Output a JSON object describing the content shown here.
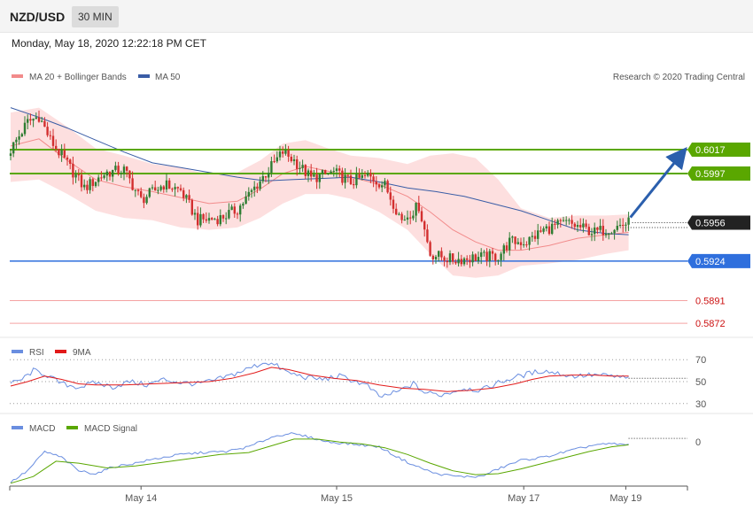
{
  "header": {
    "symbol": "NZD/USD",
    "timeframe_button": "30 MIN",
    "datetime": "Monday, May 18, 2020 12:22:18 PM CET"
  },
  "legend": {
    "ma20": "MA 20 + Bollinger Bands",
    "ma50": "MA 50",
    "credit": "Research © 2020 Trading Central",
    "rsi": "RSI",
    "rsi_ma": "9MA",
    "macd": "MACD",
    "macd_signal": "MACD Signal"
  },
  "colors": {
    "up_candle": "#2e7d32",
    "down_candle": "#d32f2f",
    "bollinger_fill": "#fcd4d4",
    "ma20": "#f28b8b",
    "ma50": "#3a5da6",
    "resistance": "#5aa700",
    "support": "#2f6fdd",
    "extra_support": "#f5a3a3",
    "current_price": "#222222",
    "rsi": "#6a8ee0",
    "rsi_ma": "#e21a1a",
    "macd": "#6a8ee0",
    "macd_signal": "#5aa700",
    "arrow": "#2b5fad"
  },
  "chart_data": [
    {
      "type": "candlestick",
      "title": "NZD/USD",
      "ylim": [
        0.5864,
        0.6068
      ],
      "levels": [
        {
          "value": 0.6017,
          "label": "0.6017",
          "kind": "resistance"
        },
        {
          "value": 0.5997,
          "label": "0.5997",
          "kind": "resistance"
        },
        {
          "value": 0.5956,
          "label": "0.5956",
          "kind": "current"
        },
        {
          "value": 0.5924,
          "label": "0.5924",
          "kind": "support"
        },
        {
          "value": 0.5891,
          "label": "0.5891",
          "kind": "extra_support"
        },
        {
          "value": 0.5872,
          "label": "0.5872",
          "kind": "extra_support"
        }
      ],
      "x_ticks": [
        "May 14",
        "May 15",
        "May 17",
        "May 19"
      ],
      "anchors_close": [
        [
          0,
          0.6017
        ],
        [
          6,
          0.604
        ],
        [
          10,
          0.6045
        ],
        [
          14,
          0.6025
        ],
        [
          20,
          0.6005
        ],
        [
          26,
          0.5985
        ],
        [
          34,
          0.5998
        ],
        [
          40,
          0.6
        ],
        [
          46,
          0.5975
        ],
        [
          54,
          0.5988
        ],
        [
          60,
          0.5983
        ],
        [
          66,
          0.5958
        ],
        [
          74,
          0.596
        ],
        [
          80,
          0.5967
        ],
        [
          86,
          0.5985
        ],
        [
          92,
          0.6003
        ],
        [
          96,
          0.6015
        ],
        [
          100,
          0.6008
        ],
        [
          106,
          0.5993
        ],
        [
          114,
          0.5998
        ],
        [
          120,
          0.599
        ],
        [
          126,
          0.5995
        ],
        [
          132,
          0.5987
        ],
        [
          138,
          0.5958
        ],
        [
          144,
          0.597
        ],
        [
          148,
          0.593
        ],
        [
          156,
          0.5925
        ],
        [
          164,
          0.5927
        ],
        [
          172,
          0.5928
        ],
        [
          176,
          0.594
        ],
        [
          182,
          0.594
        ],
        [
          188,
          0.595
        ],
        [
          196,
          0.5956
        ],
        [
          206,
          0.5948
        ],
        [
          214,
          0.5953
        ],
        [
          218,
          0.5956
        ]
      ],
      "bollinger_upper": [
        [
          0,
          0.6048
        ],
        [
          10,
          0.6052
        ],
        [
          20,
          0.6036
        ],
        [
          30,
          0.6018
        ],
        [
          40,
          0.6012
        ],
        [
          50,
          0.6005
        ],
        [
          60,
          0.6002
        ],
        [
          70,
          0.5996
        ],
        [
          80,
          0.5998
        ],
        [
          88,
          0.6008
        ],
        [
          96,
          0.6022
        ],
        [
          104,
          0.6025
        ],
        [
          112,
          0.6018
        ],
        [
          120,
          0.6012
        ],
        [
          130,
          0.601
        ],
        [
          140,
          0.6005
        ],
        [
          148,
          0.6012
        ],
        [
          156,
          0.6014
        ],
        [
          164,
          0.601
        ],
        [
          172,
          0.5992
        ],
        [
          180,
          0.5968
        ],
        [
          190,
          0.596
        ],
        [
          200,
          0.5962
        ],
        [
          210,
          0.5962
        ],
        [
          218,
          0.5963
        ]
      ],
      "bollinger_lower": [
        [
          0,
          0.599
        ],
        [
          10,
          0.5992
        ],
        [
          20,
          0.598
        ],
        [
          30,
          0.5966
        ],
        [
          40,
          0.596
        ],
        [
          50,
          0.5958
        ],
        [
          60,
          0.5952
        ],
        [
          70,
          0.595
        ],
        [
          80,
          0.5952
        ],
        [
          88,
          0.596
        ],
        [
          96,
          0.5972
        ],
        [
          104,
          0.598
        ],
        [
          112,
          0.598
        ],
        [
          120,
          0.5976
        ],
        [
          130,
          0.5965
        ],
        [
          140,
          0.595
        ],
        [
          148,
          0.593
        ],
        [
          156,
          0.5912
        ],
        [
          164,
          0.591
        ],
        [
          172,
          0.5912
        ],
        [
          180,
          0.592
        ],
        [
          190,
          0.5922
        ],
        [
          200,
          0.5925
        ],
        [
          210,
          0.593
        ],
        [
          218,
          0.5933
        ]
      ],
      "ma20": [
        [
          0,
          0.602
        ],
        [
          10,
          0.6026
        ],
        [
          20,
          0.6008
        ],
        [
          30,
          0.5992
        ],
        [
          40,
          0.5986
        ],
        [
          50,
          0.5982
        ],
        [
          60,
          0.5977
        ],
        [
          70,
          0.5972
        ],
        [
          80,
          0.5974
        ],
        [
          88,
          0.5984
        ],
        [
          96,
          0.5997
        ],
        [
          104,
          0.6003
        ],
        [
          112,
          0.5999
        ],
        [
          120,
          0.5994
        ],
        [
          130,
          0.5988
        ],
        [
          140,
          0.5978
        ],
        [
          148,
          0.5965
        ],
        [
          156,
          0.595
        ],
        [
          164,
          0.594
        ],
        [
          172,
          0.5933
        ],
        [
          180,
          0.5933
        ],
        [
          190,
          0.5937
        ],
        [
          200,
          0.5943
        ],
        [
          210,
          0.5946
        ],
        [
          218,
          0.5948
        ]
      ],
      "ma50": [
        [
          0,
          0.6052
        ],
        [
          10,
          0.6044
        ],
        [
          20,
          0.6035
        ],
        [
          30,
          0.6025
        ],
        [
          40,
          0.6015
        ],
        [
          50,
          0.6006
        ],
        [
          60,
          0.6002
        ],
        [
          70,
          0.5998
        ],
        [
          80,
          0.5994
        ],
        [
          90,
          0.5991
        ],
        [
          100,
          0.5992
        ],
        [
          110,
          0.5993
        ],
        [
          120,
          0.5994
        ],
        [
          130,
          0.599
        ],
        [
          140,
          0.5985
        ],
        [
          150,
          0.5982
        ],
        [
          160,
          0.5978
        ],
        [
          170,
          0.5972
        ],
        [
          180,
          0.5966
        ],
        [
          190,
          0.5958
        ],
        [
          200,
          0.595
        ],
        [
          210,
          0.5947
        ],
        [
          218,
          0.5946
        ]
      ]
    },
    {
      "type": "line",
      "title": "RSI",
      "ylim": [
        25,
        75
      ],
      "y_ticks": [
        70,
        50,
        30
      ],
      "series": [
        {
          "name": "RSI",
          "values": [
            [
              0,
              48
            ],
            [
              4,
              52
            ],
            [
              8,
              60
            ],
            [
              12,
              57
            ],
            [
              18,
              48
            ],
            [
              24,
              45
            ],
            [
              30,
              49
            ],
            [
              36,
              45
            ],
            [
              42,
              50
            ],
            [
              48,
              47
            ],
            [
              54,
              52
            ],
            [
              60,
              49
            ],
            [
              66,
              48
            ],
            [
              72,
              51
            ],
            [
              78,
              56
            ],
            [
              84,
              62
            ],
            [
              90,
              68
            ],
            [
              94,
              64
            ],
            [
              98,
              58
            ],
            [
              104,
              54
            ],
            [
              110,
              52
            ],
            [
              116,
              55
            ],
            [
              122,
              50
            ],
            [
              126,
              46
            ],
            [
              130,
              36
            ],
            [
              136,
              40
            ],
            [
              142,
              48
            ],
            [
              146,
              40
            ],
            [
              152,
              38
            ],
            [
              160,
              44
            ],
            [
              166,
              42
            ],
            [
              172,
              49
            ],
            [
              178,
              54
            ],
            [
              184,
              58
            ],
            [
              188,
              60
            ],
            [
              192,
              58
            ],
            [
              198,
              55
            ],
            [
              206,
              56
            ],
            [
              212,
              55
            ],
            [
              218,
              53
            ]
          ]
        },
        {
          "name": "9MA",
          "values": [
            [
              0,
              46
            ],
            [
              6,
              50
            ],
            [
              12,
              55
            ],
            [
              18,
              52
            ],
            [
              24,
              48
            ],
            [
              30,
              47
            ],
            [
              40,
              47
            ],
            [
              50,
              48
            ],
            [
              60,
              49
            ],
            [
              70,
              50
            ],
            [
              78,
              53
            ],
            [
              86,
              58
            ],
            [
              92,
              63
            ],
            [
              98,
              61
            ],
            [
              106,
              56
            ],
            [
              114,
              53
            ],
            [
              122,
              51
            ],
            [
              130,
              47
            ],
            [
              138,
              44
            ],
            [
              146,
              43
            ],
            [
              154,
              41
            ],
            [
              162,
              42
            ],
            [
              170,
              44
            ],
            [
              178,
              48
            ],
            [
              184,
              52
            ],
            [
              190,
              55
            ],
            [
              198,
              56
            ],
            [
              206,
              56
            ],
            [
              212,
              55
            ],
            [
              218,
              55
            ]
          ]
        }
      ]
    },
    {
      "type": "line",
      "title": "MACD",
      "ylim": [
        -0.0045,
        0.0014
      ],
      "y_ticks": [
        0
      ],
      "x_ticks": [
        "May 14",
        "May 15",
        "May 17",
        "May 19"
      ],
      "series": [
        {
          "name": "MACD",
          "values": [
            [
              0,
              -0.0042
            ],
            [
              6,
              -0.003
            ],
            [
              12,
              -0.001
            ],
            [
              18,
              -0.0016
            ],
            [
              24,
              -0.003
            ],
            [
              30,
              -0.0033
            ],
            [
              36,
              -0.0026
            ],
            [
              44,
              -0.0022
            ],
            [
              52,
              -0.0017
            ],
            [
              60,
              -0.0013
            ],
            [
              68,
              -0.0011
            ],
            [
              76,
              -0.001
            ],
            [
              84,
              -0.0005
            ],
            [
              92,
              0.0005
            ],
            [
              98,
              0.0009
            ],
            [
              104,
              0.0006
            ],
            [
              112,
              0.0
            ],
            [
              120,
              -0.0002
            ],
            [
              130,
              -0.0005
            ],
            [
              136,
              -0.0015
            ],
            [
              142,
              -0.0024
            ],
            [
              150,
              -0.0033
            ],
            [
              158,
              -0.0036
            ],
            [
              166,
              -0.0036
            ],
            [
              172,
              -0.0028
            ],
            [
              180,
              -0.0019
            ],
            [
              188,
              -0.0016
            ],
            [
              196,
              -0.001
            ],
            [
              206,
              -0.0003
            ],
            [
              212,
              -0.0002
            ],
            [
              218,
              -0.0003
            ]
          ]
        },
        {
          "name": "MACD Signal",
          "values": [
            [
              0,
              -0.0043
            ],
            [
              8,
              -0.0036
            ],
            [
              16,
              -0.002
            ],
            [
              24,
              -0.0022
            ],
            [
              34,
              -0.0027
            ],
            [
              44,
              -0.0025
            ],
            [
              54,
              -0.0021
            ],
            [
              64,
              -0.0017
            ],
            [
              74,
              -0.0013
            ],
            [
              84,
              -0.0011
            ],
            [
              92,
              -0.0004
            ],
            [
              100,
              0.0003
            ],
            [
              108,
              0.0003
            ],
            [
              116,
              0.0
            ],
            [
              124,
              -0.0002
            ],
            [
              132,
              -0.0006
            ],
            [
              140,
              -0.0013
            ],
            [
              148,
              -0.0022
            ],
            [
              156,
              -0.003
            ],
            [
              164,
              -0.0034
            ],
            [
              172,
              -0.0033
            ],
            [
              180,
              -0.0028
            ],
            [
              188,
              -0.0022
            ],
            [
              196,
              -0.0016
            ],
            [
              204,
              -0.001
            ],
            [
              212,
              -0.0005
            ],
            [
              218,
              -0.0003
            ]
          ]
        }
      ]
    }
  ]
}
